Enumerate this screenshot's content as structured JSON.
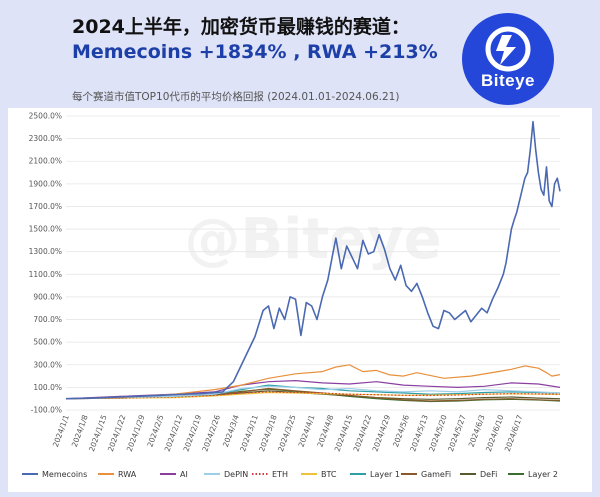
{
  "header": {
    "title_line1": "2024上半年，加密货币最赚钱的赛道：",
    "title_line2": "Memecoins  +1834%  , RWA  +213%",
    "subtitle": "每个赛道市值TOP10代币的平均价格回报  (2024.01.01-2024.06.21)"
  },
  "logo": {
    "text": "Biteye",
    "icon": "biteye-lightning-icon"
  },
  "watermark": "@Biteye",
  "chart_data": {
    "type": "line",
    "ylim": [
      -100,
      2500
    ],
    "ytick_labels": [
      "2500.0%",
      "2300.0%",
      "2100.0%",
      "1900.0%",
      "1700.0%",
      "1500.0%",
      "1300.0%",
      "1100.0%",
      "900.0%",
      "700.0%",
      "500.0%",
      "300.0%",
      "100.0%",
      "-100.0%"
    ],
    "xtick_labels": [
      "2024/1/1",
      "2024/1/8",
      "2024/1/15",
      "2024/1/22",
      "2024/1/29",
      "2024/2/5",
      "2024/2/12",
      "2024/2/19",
      "2024/2/26",
      "2024/3/4",
      "2024/3/11",
      "2024/3/18",
      "2024/3/25",
      "2024/4/1",
      "2024/4/8",
      "2024/4/15",
      "2024/4/22",
      "2024/4/29",
      "2024/5/6",
      "2024/5/13",
      "2024/5/20",
      "2024/5/27",
      "2024/6/3",
      "2024/6/10",
      "2024/6/17"
    ],
    "x_day_range": [
      0,
      173
    ],
    "grid": true,
    "legend_position": "bottom",
    "series": [
      {
        "name": "Memecoins",
        "color": "#4a69b2",
        "style": "solid",
        "points": [
          [
            0,
            0
          ],
          [
            10,
            5
          ],
          [
            20,
            15
          ],
          [
            30,
            25
          ],
          [
            40,
            35
          ],
          [
            50,
            45
          ],
          [
            58,
            60
          ],
          [
            62,
            150
          ],
          [
            66,
            350
          ],
          [
            70,
            550
          ],
          [
            73,
            780
          ],
          [
            75,
            820
          ],
          [
            77,
            620
          ],
          [
            79,
            800
          ],
          [
            81,
            700
          ],
          [
            83,
            900
          ],
          [
            85,
            880
          ],
          [
            87,
            560
          ],
          [
            89,
            850
          ],
          [
            91,
            820
          ],
          [
            93,
            700
          ],
          [
            95,
            900
          ],
          [
            97,
            1050
          ],
          [
            99,
            1300
          ],
          [
            100,
            1420
          ],
          [
            102,
            1150
          ],
          [
            104,
            1350
          ],
          [
            106,
            1250
          ],
          [
            108,
            1150
          ],
          [
            110,
            1400
          ],
          [
            112,
            1280
          ],
          [
            114,
            1300
          ],
          [
            116,
            1450
          ],
          [
            118,
            1320
          ],
          [
            120,
            1150
          ],
          [
            122,
            1050
          ],
          [
            124,
            1180
          ],
          [
            126,
            1000
          ],
          [
            128,
            950
          ],
          [
            130,
            1020
          ],
          [
            132,
            900
          ],
          [
            134,
            760
          ],
          [
            136,
            640
          ],
          [
            138,
            620
          ],
          [
            140,
            780
          ],
          [
            142,
            760
          ],
          [
            144,
            700
          ],
          [
            146,
            740
          ],
          [
            148,
            780
          ],
          [
            150,
            680
          ],
          [
            152,
            740
          ],
          [
            154,
            800
          ],
          [
            156,
            760
          ],
          [
            158,
            880
          ],
          [
            160,
            980
          ],
          [
            162,
            1100
          ],
          [
            163,
            1200
          ],
          [
            164,
            1350
          ],
          [
            165,
            1500
          ],
          [
            166,
            1580
          ],
          [
            167,
            1650
          ],
          [
            168,
            1750
          ],
          [
            169,
            1850
          ],
          [
            170,
            1950
          ],
          [
            171,
            2000
          ],
          [
            172,
            2200
          ],
          [
            173,
            2450
          ],
          [
            174,
            2200
          ],
          [
            175,
            2000
          ],
          [
            176,
            1850
          ],
          [
            177,
            1800
          ],
          [
            178,
            2050
          ],
          [
            179,
            1750
          ],
          [
            180,
            1700
          ],
          [
            181,
            1900
          ],
          [
            182,
            1950
          ],
          [
            183,
            1834
          ]
        ]
      },
      {
        "name": "RWA",
        "color": "#e8903c",
        "style": "solid",
        "points": [
          [
            0,
            0
          ],
          [
            20,
            10
          ],
          [
            40,
            40
          ],
          [
            55,
            80
          ],
          [
            65,
            120
          ],
          [
            75,
            180
          ],
          [
            85,
            220
          ],
          [
            95,
            240
          ],
          [
            100,
            280
          ],
          [
            105,
            300
          ],
          [
            110,
            240
          ],
          [
            115,
            250
          ],
          [
            120,
            210
          ],
          [
            125,
            200
          ],
          [
            130,
            230
          ],
          [
            140,
            180
          ],
          [
            150,
            200
          ],
          [
            160,
            240
          ],
          [
            165,
            260
          ],
          [
            170,
            290
          ],
          [
            175,
            270
          ],
          [
            178,
            230
          ],
          [
            180,
            200
          ],
          [
            183,
            213
          ]
        ]
      },
      {
        "name": "AI",
        "color": "#8a3fa0",
        "style": "solid",
        "points": [
          [
            0,
            0
          ],
          [
            20,
            20
          ],
          [
            40,
            40
          ],
          [
            55,
            60
          ],
          [
            65,
            120
          ],
          [
            75,
            150
          ],
          [
            85,
            160
          ],
          [
            95,
            140
          ],
          [
            105,
            130
          ],
          [
            115,
            150
          ],
          [
            125,
            120
          ],
          [
            135,
            110
          ],
          [
            145,
            100
          ],
          [
            155,
            110
          ],
          [
            165,
            140
          ],
          [
            175,
            130
          ],
          [
            183,
            100
          ]
        ]
      },
      {
        "name": "DePIN",
        "color": "#9ecfe8",
        "style": "solid",
        "points": [
          [
            0,
            0
          ],
          [
            20,
            10
          ],
          [
            40,
            20
          ],
          [
            55,
            40
          ],
          [
            65,
            90
          ],
          [
            75,
            110
          ],
          [
            85,
            100
          ],
          [
            95,
            80
          ],
          [
            105,
            90
          ],
          [
            115,
            70
          ],
          [
            125,
            60
          ],
          [
            135,
            70
          ],
          [
            145,
            60
          ],
          [
            155,
            80
          ],
          [
            165,
            70
          ],
          [
            175,
            60
          ],
          [
            183,
            50
          ]
        ]
      },
      {
        "name": "ETH",
        "color": "#d23b3b",
        "style": "dotted",
        "points": [
          [
            0,
            0
          ],
          [
            20,
            5
          ],
          [
            40,
            15
          ],
          [
            55,
            30
          ],
          [
            65,
            50
          ],
          [
            75,
            60
          ],
          [
            85,
            55
          ],
          [
            95,
            50
          ],
          [
            105,
            40
          ],
          [
            115,
            35
          ],
          [
            125,
            30
          ],
          [
            135,
            28
          ],
          [
            145,
            32
          ],
          [
            155,
            40
          ],
          [
            165,
            45
          ],
          [
            175,
            42
          ],
          [
            183,
            40
          ]
        ]
      },
      {
        "name": "BTC",
        "color": "#f0c23a",
        "style": "solid",
        "points": [
          [
            0,
            0
          ],
          [
            20,
            5
          ],
          [
            40,
            10
          ],
          [
            55,
            25
          ],
          [
            65,
            40
          ],
          [
            75,
            55
          ],
          [
            85,
            50
          ],
          [
            95,
            45
          ],
          [
            105,
            40
          ],
          [
            115,
            35
          ],
          [
            125,
            30
          ],
          [
            135,
            32
          ],
          [
            145,
            35
          ],
          [
            155,
            40
          ],
          [
            165,
            42
          ],
          [
            175,
            40
          ],
          [
            183,
            38
          ]
        ]
      },
      {
        "name": "Layer 1",
        "color": "#2e9fa8",
        "style": "solid",
        "points": [
          [
            0,
            0
          ],
          [
            20,
            5
          ],
          [
            40,
            15
          ],
          [
            55,
            40
          ],
          [
            65,
            80
          ],
          [
            75,
            120
          ],
          [
            85,
            100
          ],
          [
            95,
            90
          ],
          [
            105,
            70
          ],
          [
            115,
            60
          ],
          [
            125,
            50
          ],
          [
            135,
            40
          ],
          [
            145,
            45
          ],
          [
            155,
            55
          ],
          [
            165,
            60
          ],
          [
            175,
            55
          ],
          [
            183,
            50
          ]
        ]
      },
      {
        "name": "GameFi",
        "color": "#8b5a2b",
        "style": "solid",
        "points": [
          [
            0,
            0
          ],
          [
            20,
            10
          ],
          [
            40,
            20
          ],
          [
            55,
            40
          ],
          [
            65,
            60
          ],
          [
            75,
            90
          ],
          [
            85,
            70
          ],
          [
            95,
            50
          ],
          [
            105,
            30
          ],
          [
            115,
            10
          ],
          [
            125,
            -10
          ],
          [
            135,
            -20
          ],
          [
            145,
            -15
          ],
          [
            155,
            -5
          ],
          [
            165,
            0
          ],
          [
            175,
            -10
          ],
          [
            183,
            -15
          ]
        ]
      },
      {
        "name": "DeFi",
        "color": "#5a5a2e",
        "style": "solid",
        "points": [
          [
            0,
            0
          ],
          [
            20,
            5
          ],
          [
            40,
            15
          ],
          [
            55,
            30
          ],
          [
            65,
            50
          ],
          [
            75,
            70
          ],
          [
            85,
            55
          ],
          [
            95,
            40
          ],
          [
            105,
            25
          ],
          [
            115,
            10
          ],
          [
            125,
            0
          ],
          [
            135,
            -5
          ],
          [
            145,
            0
          ],
          [
            155,
            10
          ],
          [
            165,
            15
          ],
          [
            175,
            5
          ],
          [
            183,
            0
          ]
        ]
      },
      {
        "name": "Layer 2",
        "color": "#3b6e2e",
        "style": "solid",
        "points": [
          [
            0,
            0
          ],
          [
            20,
            8
          ],
          [
            40,
            18
          ],
          [
            55,
            35
          ],
          [
            65,
            65
          ],
          [
            75,
            85
          ],
          [
            85,
            65
          ],
          [
            95,
            45
          ],
          [
            105,
            20
          ],
          [
            115,
            0
          ],
          [
            125,
            -15
          ],
          [
            135,
            -25
          ],
          [
            145,
            -20
          ],
          [
            155,
            -10
          ],
          [
            165,
            -5
          ],
          [
            175,
            -12
          ],
          [
            183,
            -20
          ]
        ]
      }
    ]
  }
}
